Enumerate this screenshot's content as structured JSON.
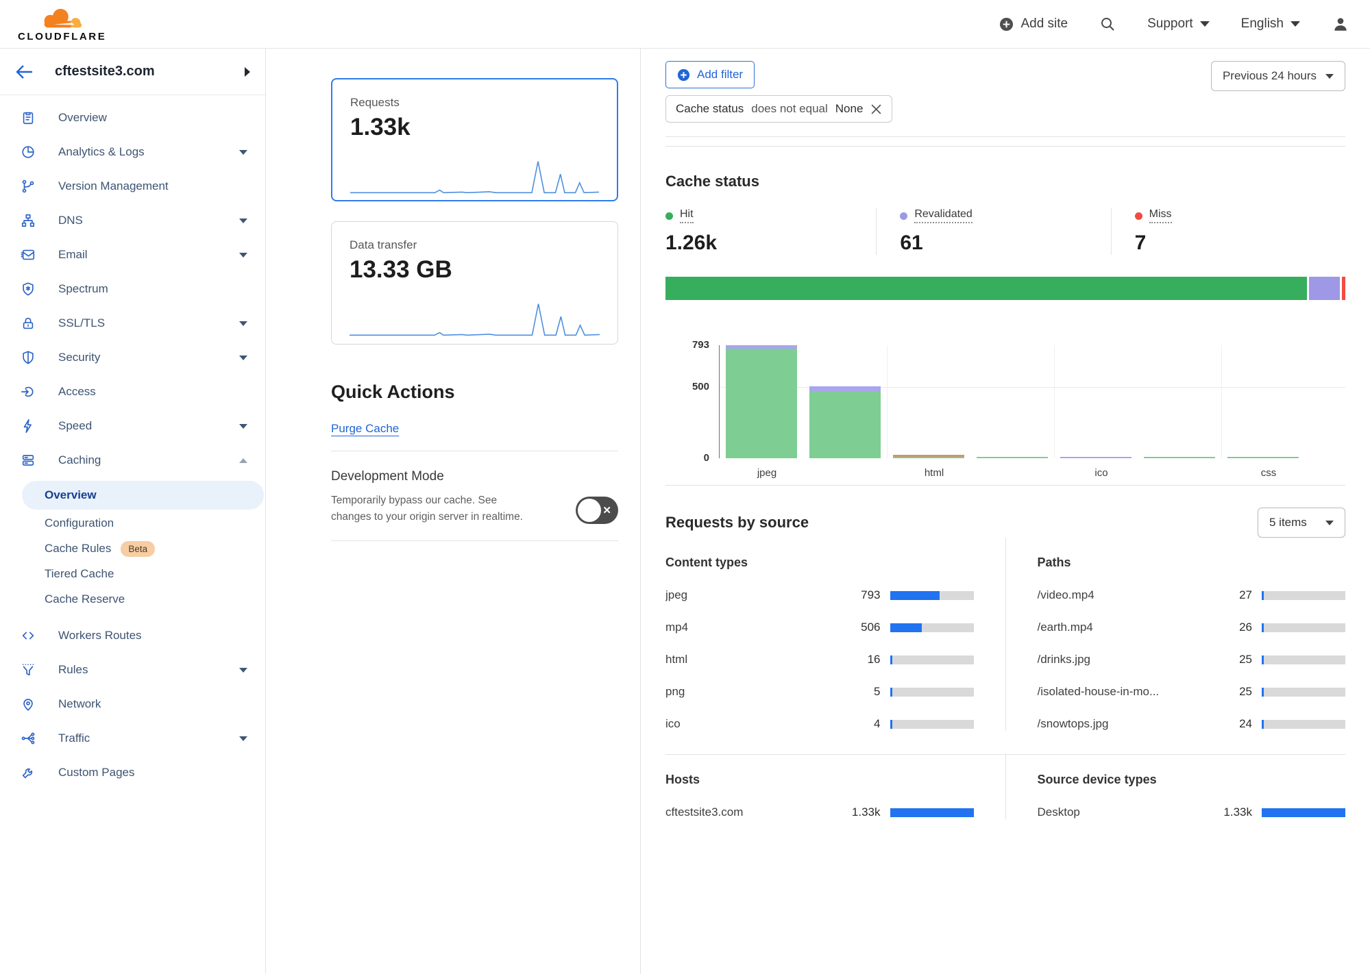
{
  "header": {
    "logo_text": "CLOUDFLARE",
    "add_site": "Add site",
    "support": "Support",
    "language": "English"
  },
  "sidebar": {
    "site": "cftestsite3.com",
    "items": [
      {
        "label": "Overview",
        "icon": "clipboard"
      },
      {
        "label": "Analytics & Logs",
        "icon": "pie-chart",
        "caret": "down"
      },
      {
        "label": "Version Management",
        "icon": "branch"
      },
      {
        "label": "DNS",
        "icon": "sitemap",
        "caret": "down"
      },
      {
        "label": "Email",
        "icon": "envelope",
        "caret": "down"
      },
      {
        "label": "Spectrum",
        "icon": "shield-star"
      },
      {
        "label": "SSL/TLS",
        "icon": "lock",
        "caret": "down"
      },
      {
        "label": "Security",
        "icon": "shield",
        "caret": "down"
      },
      {
        "label": "Access",
        "icon": "login-arrow"
      },
      {
        "label": "Speed",
        "icon": "lightning",
        "caret": "down"
      },
      {
        "label": "Caching",
        "icon": "server-stack",
        "caret": "up",
        "sub": [
          {
            "label": "Overview",
            "active": true
          },
          {
            "label": "Configuration"
          },
          {
            "label": "Cache Rules",
            "badge": "Beta"
          },
          {
            "label": "Tiered Cache"
          },
          {
            "label": "Cache Reserve"
          }
        ]
      },
      {
        "label": "Workers Routes",
        "icon": "code-brackets"
      },
      {
        "label": "Rules",
        "icon": "funnel",
        "caret": "down"
      },
      {
        "label": "Network",
        "icon": "map-pin"
      },
      {
        "label": "Traffic",
        "icon": "share-split",
        "caret": "down"
      },
      {
        "label": "Custom Pages",
        "icon": "wrench"
      }
    ]
  },
  "metrics": {
    "requests": {
      "label": "Requests",
      "value": "1.33k",
      "selected": true
    },
    "data_transfer": {
      "label": "Data transfer",
      "value": "13.33 GB"
    }
  },
  "quick_actions": {
    "title": "Quick Actions",
    "purge_label": "Purge Cache",
    "dev_mode_title": "Development Mode",
    "dev_mode_desc": "Temporarily bypass our cache. See changes to your origin server in realtime.",
    "dev_mode_enabled": false
  },
  "filters": {
    "add_filter": "Add filter",
    "chip": {
      "field": "Cache status",
      "op": "does not equal",
      "value": "None"
    },
    "time_range": "Previous 24 hours"
  },
  "cache_status": {
    "title": "Cache status",
    "legend": [
      {
        "label": "Hit",
        "value": "1.26k",
        "num": 1260,
        "color": "#36ae5e"
      },
      {
        "label": "Revalidated",
        "value": "61",
        "num": 61,
        "color": "#9e98e6"
      },
      {
        "label": "Miss",
        "value": "7",
        "num": 7,
        "color": "#f14b42"
      }
    ]
  },
  "chart_data": [
    {
      "id": "cache-status-share",
      "type": "bar",
      "subtype": "stacked-horizontal-ratio",
      "categories": [
        "Hit",
        "Revalidated",
        "Miss"
      ],
      "values": [
        1260,
        61,
        7
      ],
      "colors": [
        "#36ae5e",
        "#9e98e6",
        "#f14b42"
      ]
    },
    {
      "id": "cache-status-by-content-type",
      "type": "bar",
      "subtype": "stacked-vertical",
      "ylim": [
        0,
        793
      ],
      "yticks": [
        793,
        500,
        0
      ],
      "grid": true,
      "categories": [
        "jpeg",
        "mp4",
        "html",
        "png",
        "ico",
        "",
        "css"
      ],
      "visible_tick_labels": [
        "jpeg",
        "html",
        "ico",
        "css"
      ],
      "series_colors": {
        "hit": "#7ecd93",
        "revalidated": "#aaa5ee",
        "other": "#c59a6b"
      },
      "bars": [
        {
          "category": "jpeg",
          "segments": [
            [
              "hit",
              770
            ],
            [
              "revalidated",
              23
            ]
          ]
        },
        {
          "category": "mp4",
          "segments": [
            [
              "hit",
              466
            ],
            [
              "revalidated",
              40
            ]
          ]
        },
        {
          "category": "html",
          "segments": [
            [
              "hit",
              3
            ],
            [
              "other",
              13
            ]
          ]
        },
        {
          "category": "png",
          "segments": [
            [
              "hit",
              5
            ]
          ]
        },
        {
          "category": "ico",
          "segments": [
            [
              "revalidated",
              4
            ]
          ]
        },
        {
          "category": "",
          "segments": [
            [
              "hit",
              2
            ]
          ]
        },
        {
          "category": "css",
          "segments": [
            [
              "hit",
              2
            ]
          ]
        }
      ]
    },
    {
      "id": "requests-sparkline",
      "type": "line",
      "applies_to": [
        "Requests",
        "Data transfer"
      ],
      "color": "#4e8fe0",
      "profile": [
        [
          0,
          0.02
        ],
        [
          0.34,
          0.02
        ],
        [
          0.36,
          0.1
        ],
        [
          0.375,
          0.02
        ],
        [
          0.45,
          0.04
        ],
        [
          0.47,
          0.02
        ],
        [
          0.56,
          0.05
        ],
        [
          0.585,
          0.02
        ],
        [
          0.73,
          0.02
        ],
        [
          0.755,
          1.0
        ],
        [
          0.78,
          0.02
        ],
        [
          0.825,
          0.02
        ],
        [
          0.845,
          0.6
        ],
        [
          0.862,
          0.02
        ],
        [
          0.905,
          0.02
        ],
        [
          0.922,
          0.33
        ],
        [
          0.94,
          0.02
        ],
        [
          1,
          0.04
        ]
      ]
    }
  ],
  "requests_by_source": {
    "title": "Requests by source",
    "items_selected": "5 items",
    "total_requests": 1330,
    "content_types": {
      "title": "Content types",
      "rows": [
        {
          "label": "jpeg",
          "value": "793",
          "num": 793
        },
        {
          "label": "mp4",
          "value": "506",
          "num": 506
        },
        {
          "label": "html",
          "value": "16",
          "num": 16
        },
        {
          "label": "png",
          "value": "5",
          "num": 5
        },
        {
          "label": "ico",
          "value": "4",
          "num": 4
        }
      ]
    },
    "paths": {
      "title": "Paths",
      "rows": [
        {
          "label": "/video.mp4",
          "value": "27",
          "num": 27
        },
        {
          "label": "/earth.mp4",
          "value": "26",
          "num": 26
        },
        {
          "label": "/drinks.jpg",
          "value": "25",
          "num": 25
        },
        {
          "label": "/isolated-house-in-mo...",
          "value": "25",
          "num": 25
        },
        {
          "label": "/snowtops.jpg",
          "value": "24",
          "num": 24
        }
      ]
    },
    "hosts": {
      "title": "Hosts",
      "rows": [
        {
          "label": "cftestsite3.com",
          "value": "1.33k",
          "num": 1330
        }
      ]
    },
    "device_types": {
      "title": "Source device types",
      "rows": [
        {
          "label": "Desktop",
          "value": "1.33k",
          "num": 1330
        }
      ]
    }
  },
  "colors": {
    "accent_blue": "#2165d4",
    "selected_card_border": "#2f7bea",
    "meter_blue": "#2273f0",
    "hit_green": "#36ae5e",
    "revalidated_purple": "#9e98e6",
    "miss_red": "#f14b42",
    "chart_green": "#7ecd93",
    "chart_purple": "#aaa5ee",
    "chart_tan": "#c59a6b",
    "logo_orange": "#f48120",
    "logo_orange_light": "#faad3f"
  }
}
